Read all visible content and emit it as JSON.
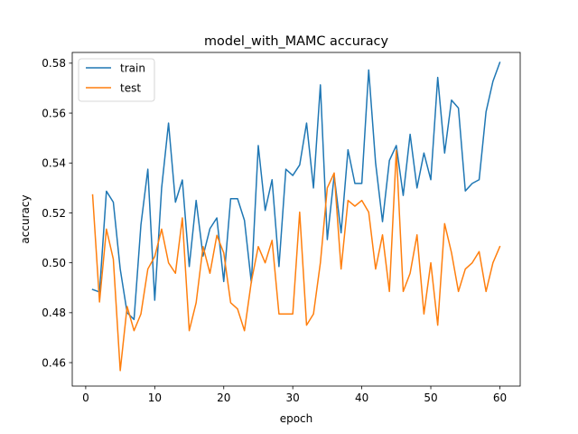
{
  "chart_data": {
    "type": "line",
    "title": "model_with_MAMC accuracy",
    "xlabel": "epoch",
    "ylabel": "accuracy",
    "xlim": [
      -1.95,
      62.95
    ],
    "ylim": [
      0.4506,
      0.5843
    ],
    "xticks": [
      0,
      10,
      20,
      30,
      40,
      50,
      60
    ],
    "xtick_labels": [
      "0",
      "10",
      "20",
      "30",
      "40",
      "50",
      "60"
    ],
    "yticks": [
      0.46,
      0.48,
      0.5,
      0.52,
      0.54,
      0.56,
      0.58
    ],
    "ytick_labels": [
      "0.46",
      "0.48",
      "0.50",
      "0.52",
      "0.54",
      "0.56",
      "0.58"
    ],
    "grid": false,
    "legend_position": "upper-left",
    "x": [
      1,
      2,
      3,
      4,
      5,
      6,
      7,
      8,
      9,
      10,
      11,
      12,
      13,
      14,
      15,
      16,
      17,
      18,
      19,
      20,
      21,
      22,
      23,
      24,
      25,
      26,
      27,
      28,
      29,
      30,
      31,
      32,
      33,
      34,
      35,
      36,
      37,
      38,
      39,
      40,
      41,
      42,
      43,
      44,
      45,
      46,
      47,
      48,
      49,
      50,
      51,
      52,
      53,
      54,
      55,
      56,
      57,
      58,
      59,
      60
    ],
    "series": [
      {
        "name": "train",
        "color": "#1f77b4",
        "values": [
          0.4893,
          0.4883,
          0.5287,
          0.5243,
          0.4975,
          0.48,
          0.4773,
          0.5152,
          0.5375,
          0.485,
          0.53,
          0.556,
          0.5243,
          0.5332,
          0.4985,
          0.525,
          0.5027,
          0.5137,
          0.518,
          0.4925,
          0.5257,
          0.5257,
          0.517,
          0.492,
          0.547,
          0.521,
          0.5333,
          0.4985,
          0.5375,
          0.535,
          0.5392,
          0.556,
          0.53,
          0.5713,
          0.5093,
          0.535,
          0.512,
          0.5453,
          0.5318,
          0.5318,
          0.5773,
          0.54,
          0.5165,
          0.541,
          0.547,
          0.527,
          0.5515,
          0.53,
          0.544,
          0.5333,
          0.5743,
          0.544,
          0.5652,
          0.562,
          0.5288,
          0.5318,
          0.5333,
          0.5605,
          0.5727,
          0.5803
        ]
      },
      {
        "name": "test",
        "color": "#ff7f0e",
        "values": [
          0.5272,
          0.4843,
          0.5135,
          0.5015,
          0.4568,
          0.4825,
          0.4728,
          0.4795,
          0.4975,
          0.5025,
          0.5135,
          0.5,
          0.4958,
          0.518,
          0.4728,
          0.484,
          0.5065,
          0.4958,
          0.511,
          0.504,
          0.484,
          0.4815,
          0.4728,
          0.4925,
          0.5065,
          0.5,
          0.509,
          0.4795,
          0.4795,
          0.4795,
          0.5203,
          0.475,
          0.4795,
          0.5,
          0.53,
          0.536,
          0.4975,
          0.525,
          0.5227,
          0.525,
          0.5203,
          0.4975,
          0.5112,
          0.4885,
          0.545,
          0.4885,
          0.4958,
          0.5112,
          0.4795,
          0.5,
          0.475,
          0.5157,
          0.504,
          0.4885,
          0.4975,
          0.5,
          0.5045,
          0.4885,
          0.5,
          0.5065
        ]
      }
    ]
  }
}
